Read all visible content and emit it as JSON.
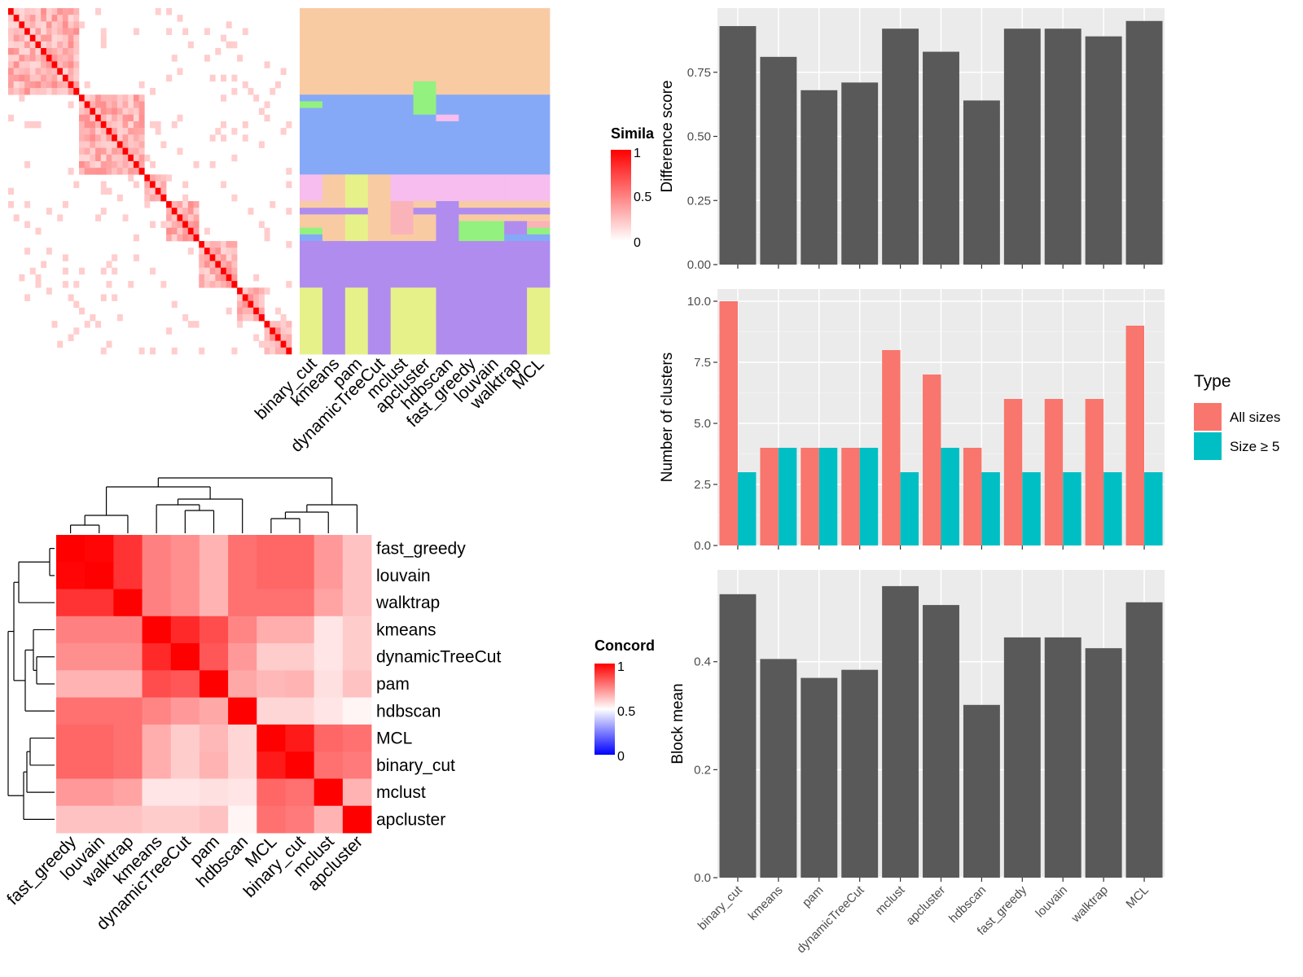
{
  "methods_heatmap": [
    "binary_cut",
    "kmeans",
    "pam",
    "dynamicTreeCut",
    "mclust",
    "apcluster",
    "hdbscan",
    "fast_greedy",
    "louvain",
    "walktrap",
    "MCL"
  ],
  "methods_barplot": [
    "binary_cut",
    "kmeans",
    "pam",
    "dynamicTreeCut",
    "mclust",
    "apcluster",
    "hdbscan",
    "fast_greedy",
    "louvain",
    "walktrap",
    "MCL"
  ],
  "methods_concordance": [
    "fast_greedy",
    "louvain",
    "walktrap",
    "kmeans",
    "dynamicTreeCut",
    "pam",
    "hdbscan",
    "MCL",
    "binary_cut",
    "mclust",
    "apcluster"
  ],
  "similarity_legend": {
    "title": "Simila",
    "ticks": [
      "1",
      "0.5",
      "0"
    ],
    "colors": [
      "#FFFFFF",
      "#FF0000"
    ]
  },
  "concordance_legend": {
    "title": "Concord",
    "ticks": [
      "1",
      "0.5",
      "0"
    ],
    "colors": [
      "#0000FF",
      "#FFFFFF",
      "#FF0000"
    ]
  },
  "cluster_palette": {
    "peach": "#F9CBA3",
    "blue": "#86A9F7",
    "pink": "#F6BDEE",
    "purple": "#B08CEF",
    "yellow": "#E6F18A",
    "green": "#93F17F",
    "rose": "#FAB3B9"
  },
  "chart_data": [
    {
      "type": "bar",
      "categories": [
        "binary_cut",
        "kmeans",
        "pam",
        "dynamicTreeCut",
        "mclust",
        "apcluster",
        "hdbscan",
        "fast_greedy",
        "louvain",
        "walktrap",
        "MCL"
      ],
      "values": [
        0.93,
        0.81,
        0.68,
        0.71,
        0.92,
        0.83,
        0.64,
        0.92,
        0.92,
        0.89,
        0.95
      ],
      "ylabel": "Difference score",
      "ylim": [
        0,
        1.0
      ],
      "yticks": [
        "0.00",
        "0.25",
        "0.50",
        "0.75"
      ],
      "ytick_values": [
        0,
        0.25,
        0.5,
        0.75
      ],
      "color": "#595959",
      "grid": true
    },
    {
      "type": "bar",
      "categories": [
        "binary_cut",
        "kmeans",
        "pam",
        "dynamicTreeCut",
        "mclust",
        "apcluster",
        "hdbscan",
        "fast_greedy",
        "louvain",
        "walktrap",
        "MCL"
      ],
      "series": [
        {
          "name": "All sizes",
          "values": [
            10,
            4,
            4,
            4,
            8,
            7,
            4,
            6,
            6,
            6,
            9
          ],
          "color": "#F8766D"
        },
        {
          "name": "Size ≥ 5",
          "values": [
            3,
            4,
            4,
            4,
            3,
            4,
            3,
            3,
            3,
            3,
            3
          ],
          "color": "#00BFC4"
        }
      ],
      "ylabel": "Number of clusters",
      "ylim": [
        0,
        10.5
      ],
      "yticks": [
        "0.0",
        "2.5",
        "5.0",
        "7.5",
        "10.0"
      ],
      "ytick_values": [
        0,
        2.5,
        5,
        7.5,
        10
      ],
      "legend_title": "Type",
      "legend_position": "right",
      "grid": true
    },
    {
      "type": "bar",
      "categories": [
        "binary_cut",
        "kmeans",
        "pam",
        "dynamicTreeCut",
        "mclust",
        "apcluster",
        "hdbscan",
        "fast_greedy",
        "louvain",
        "walktrap",
        "MCL"
      ],
      "values": [
        0.525,
        0.405,
        0.37,
        0.385,
        0.54,
        0.505,
        0.32,
        0.445,
        0.445,
        0.425,
        0.51
      ],
      "ylabel": "Block mean",
      "ylim": [
        0,
        0.57
      ],
      "yticks": [
        "0.0",
        "0.2",
        "0.4"
      ],
      "ytick_values": [
        0,
        0.2,
        0.4
      ],
      "color": "#595959",
      "grid": true
    },
    {
      "type": "heatmap",
      "rows": [
        "fast_greedy",
        "louvain",
        "walktrap",
        "kmeans",
        "dynamicTreeCut",
        "pam",
        "hdbscan",
        "MCL",
        "binary_cut",
        "mclust",
        "apcluster"
      ],
      "columns": [
        "fast_greedy",
        "louvain",
        "walktrap",
        "kmeans",
        "dynamicTreeCut",
        "pam",
        "hdbscan",
        "MCL",
        "binary_cut",
        "mclust",
        "apcluster"
      ],
      "values": [
        [
          1.0,
          0.99,
          0.9,
          0.75,
          0.72,
          0.65,
          0.78,
          0.8,
          0.8,
          0.7,
          0.62
        ],
        [
          0.99,
          1.0,
          0.9,
          0.75,
          0.72,
          0.65,
          0.78,
          0.8,
          0.8,
          0.7,
          0.62
        ],
        [
          0.9,
          0.9,
          1.0,
          0.75,
          0.72,
          0.65,
          0.78,
          0.78,
          0.78,
          0.68,
          0.62
        ],
        [
          0.75,
          0.75,
          0.75,
          1.0,
          0.92,
          0.85,
          0.74,
          0.66,
          0.66,
          0.55,
          0.6
        ],
        [
          0.72,
          0.72,
          0.72,
          0.92,
          1.0,
          0.83,
          0.7,
          0.6,
          0.6,
          0.55,
          0.6
        ],
        [
          0.65,
          0.65,
          0.65,
          0.85,
          0.83,
          1.0,
          0.67,
          0.64,
          0.65,
          0.56,
          0.62
        ],
        [
          0.78,
          0.78,
          0.78,
          0.74,
          0.7,
          0.67,
          1.0,
          0.58,
          0.58,
          0.55,
          0.52
        ],
        [
          0.8,
          0.8,
          0.78,
          0.66,
          0.6,
          0.64,
          0.58,
          1.0,
          0.95,
          0.8,
          0.78
        ],
        [
          0.8,
          0.8,
          0.78,
          0.66,
          0.6,
          0.65,
          0.58,
          0.95,
          1.0,
          0.78,
          0.76
        ],
        [
          0.7,
          0.7,
          0.68,
          0.55,
          0.55,
          0.56,
          0.55,
          0.8,
          0.78,
          1.0,
          0.65
        ],
        [
          0.62,
          0.62,
          0.62,
          0.6,
          0.6,
          0.62,
          0.52,
          0.78,
          0.76,
          0.65,
          1.0
        ]
      ],
      "color_range": [
        0,
        1
      ]
    }
  ]
}
